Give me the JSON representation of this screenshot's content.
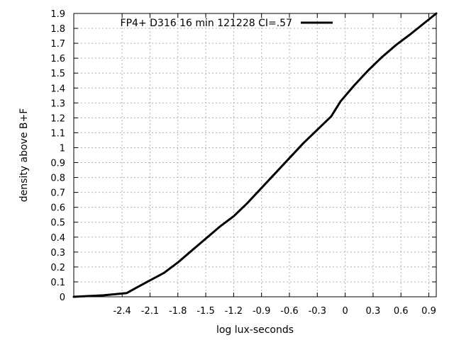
{
  "chart_data": {
    "type": "line",
    "xlabel": "log lux-seconds",
    "ylabel": "density above B+F",
    "xlim": [
      -2.92,
      0.98
    ],
    "ylim": [
      0,
      1.9
    ],
    "x_ticks": [
      -2.4,
      -2.1,
      -1.8,
      -1.5,
      -1.2,
      -0.9,
      -0.6,
      -0.3,
      0,
      0.3,
      0.6,
      0.9
    ],
    "x_tick_labels": [
      "-2.4",
      "-2.1",
      "-1.8",
      "-1.5",
      "-1.2",
      "-0.9",
      "-0.6",
      "-0.3",
      "0",
      "0.3",
      "0.6",
      "0.9"
    ],
    "y_ticks": [
      0,
      0.1,
      0.2,
      0.3,
      0.4,
      0.5,
      0.6,
      0.7,
      0.8,
      0.9,
      1,
      1.1,
      1.2,
      1.3,
      1.4,
      1.5,
      1.6,
      1.7,
      1.8,
      1.9
    ],
    "y_tick_labels": [
      "0",
      "0.1",
      "0.2",
      "0.3",
      "0.4",
      "0.5",
      "0.6",
      "0.7",
      "0.8",
      "0.9",
      "1",
      "1.1",
      "1.2",
      "1.3",
      "1.4",
      "1.5",
      "1.6",
      "1.7",
      "1.8",
      "1.9"
    ],
    "grid": true,
    "legend_position": "top",
    "series": [
      {
        "name": "FP4+ D316 16 min 121228 CI=.57",
        "color": "#000000",
        "x": [
          -2.92,
          -2.6,
          -2.35,
          -2.25,
          -2.1,
          -1.95,
          -1.8,
          -1.65,
          -1.5,
          -1.35,
          -1.2,
          -1.05,
          -0.9,
          -0.75,
          -0.6,
          -0.45,
          -0.3,
          -0.15,
          -0.05,
          0.1,
          0.25,
          0.4,
          0.55,
          0.7,
          0.98
        ],
        "y": [
          0,
          0.01,
          0.025,
          0.06,
          0.11,
          0.16,
          0.23,
          0.31,
          0.39,
          0.47,
          0.54,
          0.63,
          0.73,
          0.83,
          0.93,
          1.03,
          1.12,
          1.21,
          1.31,
          1.42,
          1.52,
          1.61,
          1.69,
          1.76,
          1.9
        ]
      }
    ]
  }
}
